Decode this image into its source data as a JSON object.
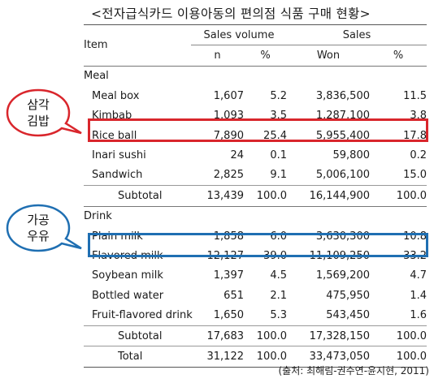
{
  "title": "<전자급식카드 이용아동의 편의점 식품 구매 현황>",
  "table": {
    "header_item": "Item",
    "header_sales_volume": "Sales volume",
    "header_sales": "Sales",
    "sub_n": "n",
    "sub_pct1": "%",
    "sub_won": "Won",
    "sub_pct2": "%",
    "meal_label": "Meal",
    "meal_rows": [
      {
        "item": "Meal box",
        "n": "1,607",
        "p1": "5.2",
        "won": "3,836,500",
        "p2": "11.5"
      },
      {
        "item": "Kimbab",
        "n": "1,093",
        "p1": "3.5",
        "won": "1,287,100",
        "p2": "3.8"
      },
      {
        "item": "Rice ball",
        "n": "7,890",
        "p1": "25.4",
        "won": "5,955,400",
        "p2": "17.8"
      },
      {
        "item": "Inari sushi",
        "n": "24",
        "p1": "0.1",
        "won": "59,800",
        "p2": "0.2"
      },
      {
        "item": "Sandwich",
        "n": "2,825",
        "p1": "9.1",
        "won": "5,006,100",
        "p2": "15.0"
      }
    ],
    "meal_subtotal": {
      "item": "Subtotal",
      "n": "13,439",
      "p1": "100.0",
      "won": "16,144,900",
      "p2": "100.0"
    },
    "drink_label": "Drink",
    "drink_rows": [
      {
        "item": "Plain milk",
        "n": "1,858",
        "p1": "6.0",
        "won": "3,630,300",
        "p2": "10.8"
      },
      {
        "item": "Flavored milk",
        "n": "12,127",
        "p1": "39.0",
        "won": "11,109,250",
        "p2": "33.2"
      },
      {
        "item": "Soybean milk",
        "n": "1,397",
        "p1": "4.5",
        "won": "1,569,200",
        "p2": "4.7"
      },
      {
        "item": "Bottled water",
        "n": "651",
        "p1": "2.1",
        "won": "475,950",
        "p2": "1.4"
      },
      {
        "item": "Fruit-flavored drink",
        "n": "1,650",
        "p1": "5.3",
        "won": "543,450",
        "p2": "1.6"
      }
    ],
    "drink_subtotal": {
      "item": "Subtotal",
      "n": "17,683",
      "p1": "100.0",
      "won": "17,328,150",
      "p2": "100.0"
    },
    "total": {
      "item": "Total",
      "n": "31,122",
      "p1": "100.0",
      "won": "33,473,050",
      "p2": "100.0"
    }
  },
  "callouts": {
    "red_line1": "삼각",
    "red_line2": "김밥",
    "blue_line1": "가공",
    "blue_line2": "우유",
    "red_color": "#d9262c",
    "blue_color": "#1f6fb2"
  },
  "source_note": "(출처: 최해림-권수연-윤지현, 2011)"
}
